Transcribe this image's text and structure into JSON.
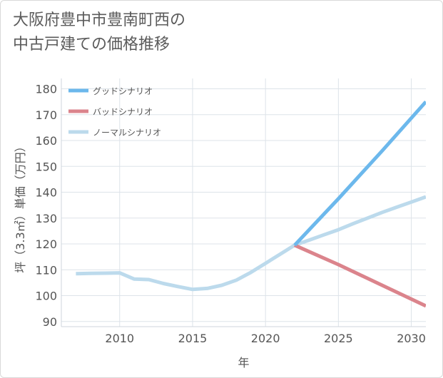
{
  "title": {
    "line1": "大阪府豊中市豊南町西の",
    "line2": "中古戸建ての価格推移"
  },
  "chart_data": {
    "type": "line",
    "title": "大阪府豊中市豊南町西の中古戸建ての価格推移",
    "xlabel": "年",
    "ylabel": "坪（3.3㎡）単価（万円）",
    "xlim": [
      2006,
      2031
    ],
    "ylim": [
      88,
      184
    ],
    "xticks": [
      2010,
      2015,
      2020,
      2025,
      2030
    ],
    "yticks": [
      90,
      100,
      110,
      120,
      130,
      140,
      150,
      160,
      170,
      180
    ],
    "grid": true,
    "legend_position": "top-left",
    "series": [
      {
        "name": "グッドシナリオ",
        "color": "#6cb8ec",
        "x": [
          2022,
          2025,
          2028,
          2031
        ],
        "y": [
          119.5,
          137.5,
          156,
          175
        ]
      },
      {
        "name": "バッドシナリオ",
        "color": "#db848c",
        "x": [
          2022,
          2025,
          2028,
          2031
        ],
        "y": [
          119.5,
          112,
          104,
          96
        ]
      },
      {
        "name": "ノーマルシナリオ",
        "color": "#bcdaec",
        "x": [
          2007,
          2008,
          2009,
          2010,
          2011,
          2012,
          2013,
          2014,
          2015,
          2016,
          2017,
          2018,
          2019,
          2020,
          2021,
          2022,
          2023,
          2024,
          2025,
          2026,
          2027,
          2028,
          2029,
          2030,
          2031
        ],
        "y": [
          108.5,
          108.6,
          108.7,
          108.8,
          106.4,
          106.2,
          104.7,
          103.5,
          102.4,
          102.8,
          104,
          106,
          109,
          112.5,
          116,
          119.5,
          121.5,
          123.5,
          125.5,
          127.8,
          130,
          132.2,
          134.2,
          136.2,
          138.2
        ]
      }
    ]
  }
}
